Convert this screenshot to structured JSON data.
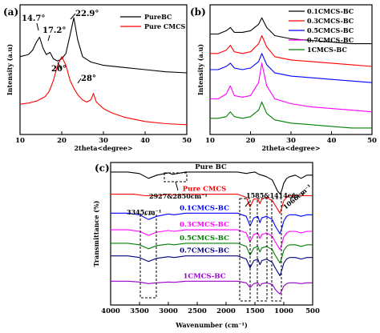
{
  "chart_data": [
    {
      "panel": "(a)",
      "type": "line",
      "xlabel": "2theta<degree>",
      "ylabel": "Intensity (a.u)",
      "xlim": [
        10,
        50
      ],
      "xticks": [
        10,
        20,
        30,
        40,
        50
      ],
      "legend_position": "top-right",
      "series": [
        {
          "name": "PureBC",
          "color": "#000000",
          "x": [
            10,
            12,
            13,
            14,
            14.7,
            15.5,
            16.3,
            17.2,
            18,
            19,
            20,
            21,
            22,
            22.9,
            23.8,
            25,
            27,
            30,
            35,
            40,
            45,
            50
          ],
          "y": [
            0.82,
            0.84,
            0.88,
            0.96,
            1.0,
            0.9,
            0.84,
            0.86,
            0.8,
            0.78,
            0.8,
            0.85,
            1.02,
            1.18,
            0.98,
            0.82,
            0.77,
            0.74,
            0.72,
            0.7,
            0.68,
            0.67
          ]
        },
        {
          "name": "Pure CMCS",
          "color": "#ff0000",
          "x": [
            10,
            12,
            14,
            16,
            17,
            18,
            19,
            20,
            21,
            22,
            23,
            24,
            25,
            26,
            27,
            27.6,
            28.3,
            30,
            32,
            35,
            40,
            45,
            50
          ],
          "y": [
            0.38,
            0.39,
            0.41,
            0.45,
            0.5,
            0.6,
            0.74,
            0.82,
            0.74,
            0.6,
            0.52,
            0.46,
            0.42,
            0.4,
            0.42,
            0.48,
            0.4,
            0.34,
            0.3,
            0.26,
            0.22,
            0.2,
            0.19
          ]
        }
      ],
      "annotations": [
        "14.7°",
        "17.2°",
        "22.9°",
        "20°",
        "28°"
      ]
    },
    {
      "panel": "(b)",
      "type": "line",
      "xlabel": "2theta<degree>",
      "ylabel": "Intensity (a.u)",
      "xlim": [
        10,
        50
      ],
      "xticks": [
        10,
        20,
        30,
        40,
        50
      ],
      "legend_position": "top-right",
      "series": [
        {
          "name": "0.1CMCS-BC",
          "color": "#000000",
          "x": [
            10,
            12,
            14,
            15,
            16,
            18,
            20,
            22,
            22.8,
            24,
            26,
            30,
            35,
            40,
            45,
            50
          ],
          "y": [
            0.82,
            0.82,
            0.84,
            0.86,
            0.83,
            0.83,
            0.84,
            0.88,
            0.92,
            0.86,
            0.81,
            0.79,
            0.78,
            0.77,
            0.76,
            0.76
          ]
        },
        {
          "name": "0.3CMCS-BC",
          "color": "#ff0000",
          "x": [
            10,
            12,
            14,
            15,
            16,
            18,
            20,
            22,
            22.8,
            24,
            26,
            30,
            35,
            40,
            45,
            50
          ],
          "y": [
            0.7,
            0.7,
            0.72,
            0.75,
            0.71,
            0.7,
            0.71,
            0.76,
            0.81,
            0.74,
            0.68,
            0.66,
            0.65,
            0.64,
            0.63,
            0.62
          ]
        },
        {
          "name": "0.5CMCS-BC",
          "color": "#0000ff",
          "x": [
            10,
            12,
            14,
            15,
            16,
            18,
            20,
            22,
            22.8,
            24,
            26,
            30,
            35,
            40,
            45,
            50
          ],
          "y": [
            0.6,
            0.6,
            0.62,
            0.64,
            0.61,
            0.6,
            0.61,
            0.65,
            0.7,
            0.63,
            0.58,
            0.56,
            0.55,
            0.54,
            0.53,
            0.52
          ]
        },
        {
          "name": "0.7CMCS-BC",
          "color": "#ff00ff",
          "x": [
            10,
            12,
            14,
            15,
            16,
            18,
            20,
            22,
            22.8,
            24,
            26,
            30,
            35,
            40,
            45,
            50
          ],
          "y": [
            0.42,
            0.42,
            0.45,
            0.5,
            0.44,
            0.43,
            0.44,
            0.52,
            0.64,
            0.5,
            0.42,
            0.39,
            0.37,
            0.36,
            0.35,
            0.34
          ]
        },
        {
          "name": "1CMCS-BC",
          "color": "#008000",
          "x": [
            10,
            12,
            14,
            15,
            16,
            18,
            20,
            22,
            22.8,
            24,
            26,
            30,
            35,
            40,
            45,
            50
          ],
          "y": [
            0.3,
            0.3,
            0.31,
            0.34,
            0.31,
            0.3,
            0.31,
            0.35,
            0.4,
            0.33,
            0.29,
            0.27,
            0.26,
            0.25,
            0.24,
            0.24
          ]
        }
      ]
    },
    {
      "panel": "(c)",
      "type": "line",
      "xlabel": "Wavenumber (cm⁻¹)",
      "ylabel": "Transmittance (%)",
      "xlim": [
        4000,
        500
      ],
      "xticks": [
        4000,
        3500,
        3000,
        2500,
        2000,
        1500,
        1000,
        500
      ],
      "annotations": [
        "2927&2850cm⁻¹",
        "1585&1414cm⁻¹",
        "3345cm⁻¹",
        "1066cm⁻¹"
      ],
      "series": [
        {
          "name": "Pure BC",
          "color": "#000000",
          "x": [
            4000,
            3700,
            3500,
            3345,
            3200,
            3000,
            2927,
            2850,
            2700,
            2400,
            2100,
            1800,
            1640,
            1600,
            1500,
            1430,
            1380,
            1300,
            1200,
            1160,
            1110,
            1060,
            1030,
            1000,
            950,
            900,
            800,
            700,
            600,
            500
          ],
          "y": [
            0.94,
            0.94,
            0.93,
            0.9,
            0.92,
            0.935,
            0.925,
            0.93,
            0.94,
            0.94,
            0.94,
            0.94,
            0.93,
            0.935,
            0.94,
            0.925,
            0.92,
            0.91,
            0.89,
            0.86,
            0.82,
            0.8,
            0.83,
            0.87,
            0.9,
            0.91,
            0.92,
            0.9,
            0.92,
            0.92
          ]
        },
        {
          "name": "Pure CMCS",
          "color": "#ff0000",
          "x": [
            4000,
            3600,
            3400,
            3200,
            3000,
            2900,
            2700,
            2400,
            2100,
            1800,
            1650,
            1585,
            1520,
            1450,
            1414,
            1380,
            1300,
            1200,
            1150,
            1100,
            1066,
            1030,
            1000,
            950,
            900,
            800,
            700,
            600,
            500
          ],
          "y": [
            0.8,
            0.8,
            0.79,
            0.79,
            0.8,
            0.795,
            0.8,
            0.8,
            0.8,
            0.8,
            0.78,
            0.72,
            0.77,
            0.77,
            0.74,
            0.77,
            0.78,
            0.76,
            0.73,
            0.7,
            0.68,
            0.72,
            0.76,
            0.78,
            0.79,
            0.79,
            0.79,
            0.79,
            0.79
          ]
        },
        {
          "name": "0.1CMCS-BC",
          "color": "#0000ff",
          "x": [
            4000,
            3700,
            3500,
            3345,
            3200,
            3000,
            2900,
            2700,
            2400,
            2100,
            1800,
            1650,
            1585,
            1520,
            1450,
            1414,
            1380,
            1300,
            1200,
            1150,
            1100,
            1066,
            1030,
            1000,
            950,
            900,
            800,
            700,
            600,
            500
          ],
          "y": [
            0.68,
            0.68,
            0.67,
            0.64,
            0.66,
            0.675,
            0.67,
            0.68,
            0.68,
            0.68,
            0.68,
            0.66,
            0.6,
            0.65,
            0.66,
            0.62,
            0.65,
            0.66,
            0.64,
            0.6,
            0.57,
            0.55,
            0.59,
            0.63,
            0.66,
            0.67,
            0.67,
            0.66,
            0.67,
            0.67
          ]
        },
        {
          "name": "0.3CMCS-BC",
          "color": "#ff00ff",
          "x": [
            4000,
            3700,
            3500,
            3345,
            3200,
            3000,
            2900,
            2700,
            2400,
            2100,
            1800,
            1650,
            1585,
            1520,
            1450,
            1414,
            1380,
            1300,
            1200,
            1150,
            1100,
            1066,
            1030,
            1000,
            950,
            900,
            800,
            700,
            600,
            500
          ],
          "y": [
            0.575,
            0.575,
            0.565,
            0.54,
            0.56,
            0.57,
            0.565,
            0.575,
            0.575,
            0.575,
            0.575,
            0.555,
            0.5,
            0.545,
            0.555,
            0.52,
            0.545,
            0.555,
            0.535,
            0.5,
            0.47,
            0.45,
            0.49,
            0.53,
            0.555,
            0.565,
            0.565,
            0.555,
            0.565,
            0.565
          ]
        },
        {
          "name": "0.5CMCS-BC",
          "color": "#008000",
          "x": [
            4000,
            3700,
            3500,
            3345,
            3200,
            3000,
            2900,
            2700,
            2400,
            2100,
            1800,
            1650,
            1585,
            1520,
            1450,
            1414,
            1380,
            1300,
            1200,
            1150,
            1100,
            1066,
            1030,
            1000,
            950,
            900,
            800,
            700,
            600,
            500
          ],
          "y": [
            0.49,
            0.49,
            0.48,
            0.455,
            0.475,
            0.485,
            0.48,
            0.49,
            0.49,
            0.49,
            0.49,
            0.47,
            0.415,
            0.46,
            0.47,
            0.435,
            0.46,
            0.47,
            0.45,
            0.415,
            0.385,
            0.365,
            0.405,
            0.445,
            0.47,
            0.48,
            0.48,
            0.47,
            0.48,
            0.48
          ]
        },
        {
          "name": "0.7CMCS-BC",
          "color": "#000080",
          "x": [
            4000,
            3700,
            3500,
            3345,
            3200,
            3000,
            2900,
            2700,
            2400,
            2100,
            1800,
            1650,
            1585,
            1520,
            1450,
            1414,
            1380,
            1300,
            1200,
            1150,
            1100,
            1066,
            1030,
            1000,
            950,
            900,
            800,
            700,
            600,
            500
          ],
          "y": [
            0.41,
            0.41,
            0.4,
            0.375,
            0.395,
            0.405,
            0.4,
            0.41,
            0.41,
            0.41,
            0.41,
            0.39,
            0.335,
            0.38,
            0.39,
            0.355,
            0.38,
            0.39,
            0.37,
            0.335,
            0.305,
            0.285,
            0.325,
            0.365,
            0.39,
            0.4,
            0.4,
            0.39,
            0.4,
            0.4
          ]
        },
        {
          "name": "1CMCS-BC",
          "color": "#9900cc",
          "x": [
            4000,
            3700,
            3500,
            3345,
            3200,
            3000,
            2900,
            2700,
            2400,
            2100,
            1800,
            1650,
            1585,
            1520,
            1450,
            1414,
            1380,
            1300,
            1200,
            1150,
            1100,
            1066,
            1030,
            1000,
            950,
            900,
            800,
            700,
            600,
            500
          ],
          "y": [
            0.25,
            0.25,
            0.245,
            0.235,
            0.24,
            0.245,
            0.243,
            0.25,
            0.25,
            0.25,
            0.25,
            0.24,
            0.21,
            0.235,
            0.24,
            0.22,
            0.235,
            0.24,
            0.23,
            0.2,
            0.18,
            0.17,
            0.195,
            0.22,
            0.235,
            0.24,
            0.24,
            0.235,
            0.24,
            0.24
          ]
        }
      ]
    }
  ]
}
